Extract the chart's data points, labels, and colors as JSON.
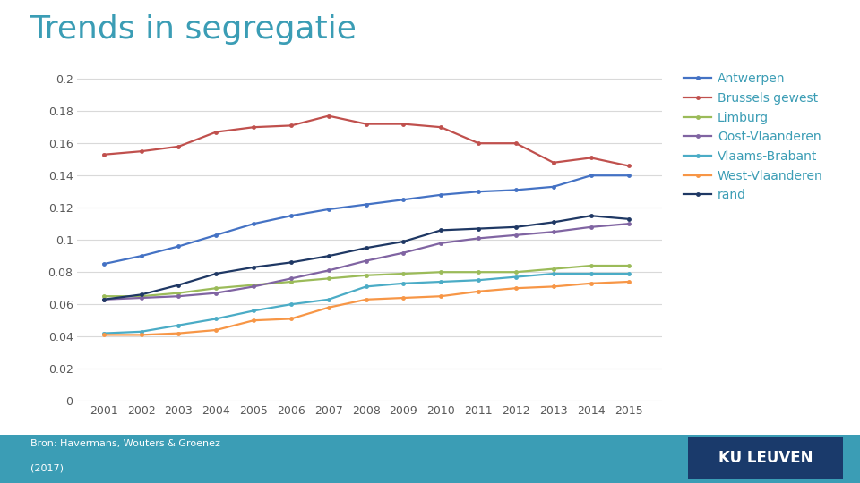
{
  "title": "Trends in segregatie",
  "years": [
    2001,
    2002,
    2003,
    2004,
    2005,
    2006,
    2007,
    2008,
    2009,
    2010,
    2011,
    2012,
    2013,
    2014,
    2015
  ],
  "series": {
    "Antwerpen": [
      0.085,
      0.09,
      0.096,
      0.103,
      0.11,
      0.115,
      0.119,
      0.122,
      0.125,
      0.128,
      0.13,
      0.131,
      0.133,
      0.14,
      0.14
    ],
    "Brussels gewest": [
      0.153,
      0.155,
      0.158,
      0.167,
      0.17,
      0.171,
      0.177,
      0.172,
      0.172,
      0.17,
      0.16,
      0.16,
      0.148,
      0.151,
      0.146
    ],
    "Limburg": [
      0.065,
      0.065,
      0.067,
      0.07,
      0.072,
      0.074,
      0.076,
      0.078,
      0.079,
      0.08,
      0.08,
      0.08,
      0.082,
      0.084,
      0.084
    ],
    "Oost-Vlaanderen": [
      0.063,
      0.064,
      0.065,
      0.067,
      0.071,
      0.076,
      0.081,
      0.087,
      0.092,
      0.098,
      0.101,
      0.103,
      0.105,
      0.108,
      0.11
    ],
    "Vlaams-Brabant": [
      0.042,
      0.043,
      0.047,
      0.051,
      0.056,
      0.06,
      0.063,
      0.071,
      0.073,
      0.074,
      0.075,
      0.077,
      0.079,
      0.079,
      0.079
    ],
    "West-Vlaanderen": [
      0.041,
      0.041,
      0.042,
      0.044,
      0.05,
      0.051,
      0.058,
      0.063,
      0.064,
      0.065,
      0.068,
      0.07,
      0.071,
      0.073,
      0.074
    ],
    "rand": [
      0.063,
      0.066,
      0.072,
      0.079,
      0.083,
      0.086,
      0.09,
      0.095,
      0.099,
      0.106,
      0.107,
      0.108,
      0.111,
      0.115,
      0.113
    ]
  },
  "colors": {
    "Antwerpen": "#4472C4",
    "Brussels gewest": "#C0504D",
    "Limburg": "#9BBB59",
    "Oost-Vlaanderen": "#8064A2",
    "Vlaams-Brabant": "#4BACC6",
    "West-Vlaanderen": "#F79646",
    "rand": "#1F3864"
  },
  "ylim": [
    0,
    0.21
  ],
  "ytick_values": [
    0,
    0.02,
    0.04,
    0.06,
    0.08,
    0.1,
    0.12,
    0.14,
    0.16,
    0.18,
    0.2
  ],
  "ytick_labels": [
    "0",
    "0.02",
    "0.04",
    "0.06",
    "0.08",
    "0.1",
    "0.12",
    "0.14",
    "0.16",
    "0.18",
    "0.2"
  ],
  "source_text": "Bron: Havermans, Wouters & Groenez",
  "source_text2": "(2017)",
  "background_color": "#FFFFFF",
  "plot_bg_color": "#FFFFFF",
  "grid_color": "#D9D9D9",
  "title_color": "#3B9DB5",
  "legend_color": "#3B9DB5",
  "title_fontsize": 26,
  "axis_fontsize": 9,
  "legend_fontsize": 10,
  "marker": "o",
  "marker_size": 3.5,
  "line_width": 1.6,
  "teal_bar_color": "#3B9DB5",
  "kuleuven_bg": "#1A3A6B",
  "kuleuven_text": "#FFFFFF"
}
